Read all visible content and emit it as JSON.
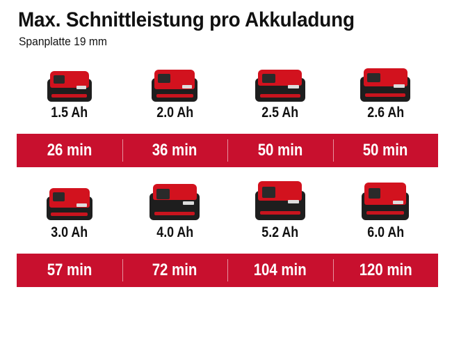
{
  "title": "Max. Schnittleistung pro Akkuladung",
  "subtitle": "Spanplatte 19 mm",
  "accent_color": "#c8102e",
  "rows": [
    {
      "batteries": [
        {
          "capacity": "1.5 Ah",
          "runtime": "26 min",
          "icon": "battery-pack-icon"
        },
        {
          "capacity": "2.0 Ah",
          "runtime": "36 min",
          "icon": "battery-pack-icon"
        },
        {
          "capacity": "2.5 Ah",
          "runtime": "50 min",
          "icon": "battery-pack-icon"
        },
        {
          "capacity": "2.6 Ah",
          "runtime": "50 min",
          "icon": "battery-pack-icon"
        }
      ]
    },
    {
      "batteries": [
        {
          "capacity": "3.0 Ah",
          "runtime": "57 min",
          "icon": "battery-pack-icon"
        },
        {
          "capacity": "4.0 Ah",
          "runtime": "72 min",
          "icon": "battery-pack-icon"
        },
        {
          "capacity": "5.2 Ah",
          "runtime": "104 min",
          "icon": "battery-pack-icon"
        },
        {
          "capacity": "6.0 Ah",
          "runtime": "120 min",
          "icon": "battery-pack-icon"
        }
      ]
    }
  ]
}
